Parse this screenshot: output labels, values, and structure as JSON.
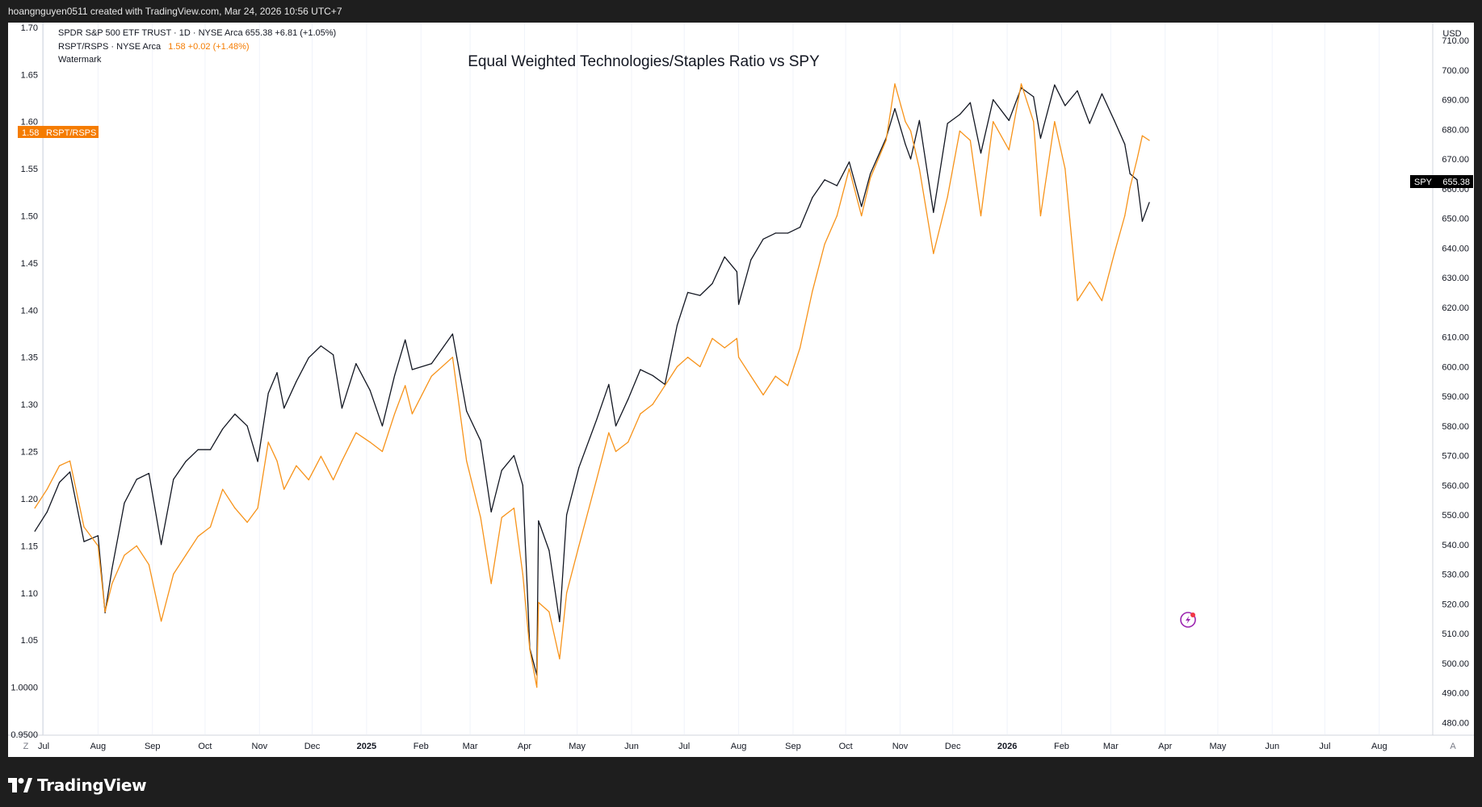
{
  "header": {
    "attribution": "hoangnguyen0511 created with TradingView.com, Mar 24, 2026 10:56 UTC+7"
  },
  "legend": {
    "spy_line": "SPDR S&P 500 ETF TRUST · 1D · NYSE Arca  655.38  +6.81 (+1.05%)",
    "ratio_name": "RSPT/RSPS · NYSE Arca",
    "ratio_values": "1.58  +0.02 (+1.48%)",
    "watermark": "Watermark"
  },
  "badges": {
    "left_value": "1.58",
    "left_name": "RSPT/RSPS",
    "right_name": "SPY",
    "right_value": "655.38"
  },
  "axis": {
    "right_unit": "USD",
    "bottom_left_button": "Z",
    "bottom_right_button": "A"
  },
  "branding": {
    "logo_text": "TradingView"
  },
  "colors": {
    "spy": "#131722",
    "ratio": "#f7931a",
    "badge_orange": "#f57c00",
    "badge_dark": "#000000",
    "grid": "#f0f3fa",
    "axis_text": "#131722",
    "lightning": "#9c27b0",
    "lightning_dot": "#f23645"
  },
  "chart_data": {
    "type": "line",
    "title": "Equal Weighted Technologies/Staples Ratio vs SPY",
    "left_axis": {
      "label": "RSPT/RSPS",
      "range": [
        0.95,
        1.705
      ],
      "ticks": [
        "1.70",
        "1.65",
        "1.60",
        "1.55",
        "1.50",
        "1.45",
        "1.40",
        "1.35",
        "1.30",
        "1.25",
        "1.20",
        "1.15",
        "1.10",
        "1.05",
        "1.0000",
        "0.9500"
      ]
    },
    "right_axis": {
      "label": "USD",
      "range": [
        476,
        716
      ],
      "ticks": [
        "710.00",
        "700.00",
        "690.00",
        "680.00",
        "670.00",
        "660.00",
        "650.00",
        "640.00",
        "630.00",
        "620.00",
        "610.00",
        "600.00",
        "590.00",
        "580.00",
        "570.00",
        "560.00",
        "550.00",
        "540.00",
        "530.00",
        "520.00",
        "510.00",
        "500.00",
        "490.00",
        "480.00"
      ]
    },
    "x_axis": {
      "labels": [
        "Jul",
        "Aug",
        "Sep",
        "Oct",
        "Nov",
        "Dec",
        "2025",
        "Feb",
        "Mar",
        "Apr",
        "May",
        "Jun",
        "Jul",
        "Aug",
        "Sep",
        "Oct",
        "Nov",
        "Dec",
        "2026",
        "Feb",
        "Mar",
        "Apr",
        "May",
        "Jun",
        "Jul",
        "Aug"
      ],
      "bold_labels": [
        "2025",
        "2026"
      ],
      "start": "2024-07-01",
      "end": "2026-08-31"
    },
    "grid": true,
    "series": [
      {
        "name": "SPY",
        "axis": "right",
        "points": [
          [
            "2024-06-26",
            544.5
          ],
          [
            "2024-07-03",
            551
          ],
          [
            "2024-07-10",
            561
          ],
          [
            "2024-07-16",
            564.5
          ],
          [
            "2024-07-24",
            541
          ],
          [
            "2024-08-01",
            543
          ],
          [
            "2024-08-05",
            517
          ],
          [
            "2024-08-09",
            532
          ],
          [
            "2024-08-16",
            554
          ],
          [
            "2024-08-23",
            562
          ],
          [
            "2024-08-30",
            564
          ],
          [
            "2024-09-06",
            540
          ],
          [
            "2024-09-13",
            562
          ],
          [
            "2024-09-20",
            568
          ],
          [
            "2024-09-27",
            572
          ],
          [
            "2024-10-04",
            572
          ],
          [
            "2024-10-11",
            579
          ],
          [
            "2024-10-18",
            584
          ],
          [
            "2024-10-25",
            580
          ],
          [
            "2024-10-31",
            568
          ],
          [
            "2024-11-06",
            591
          ],
          [
            "2024-11-11",
            598
          ],
          [
            "2024-11-15",
            586
          ],
          [
            "2024-11-22",
            595
          ],
          [
            "2024-11-29",
            603
          ],
          [
            "2024-12-06",
            607
          ],
          [
            "2024-12-13",
            604
          ],
          [
            "2024-12-18",
            586
          ],
          [
            "2024-12-26",
            601
          ],
          [
            "2025-01-03",
            592
          ],
          [
            "2025-01-10",
            580
          ],
          [
            "2025-01-17",
            597
          ],
          [
            "2025-01-23",
            609
          ],
          [
            "2025-01-27",
            599
          ],
          [
            "2025-02-07",
            601
          ],
          [
            "2025-02-19",
            611
          ],
          [
            "2025-02-27",
            585
          ],
          [
            "2025-03-07",
            575
          ],
          [
            "2025-03-13",
            551
          ],
          [
            "2025-03-19",
            565
          ],
          [
            "2025-03-26",
            570
          ],
          [
            "2025-03-31",
            560
          ],
          [
            "2025-04-04",
            505
          ],
          [
            "2025-04-08",
            496
          ],
          [
            "2025-04-09",
            548
          ],
          [
            "2025-04-15",
            538
          ],
          [
            "2025-04-21",
            514
          ],
          [
            "2025-04-25",
            550
          ],
          [
            "2025-05-02",
            566
          ],
          [
            "2025-05-12",
            582
          ],
          [
            "2025-05-19",
            594
          ],
          [
            "2025-05-23",
            580
          ],
          [
            "2025-05-30",
            589
          ],
          [
            "2025-06-06",
            599
          ],
          [
            "2025-06-13",
            597
          ],
          [
            "2025-06-20",
            594
          ],
          [
            "2025-06-27",
            614
          ],
          [
            "2025-07-03",
            625
          ],
          [
            "2025-07-10",
            624
          ],
          [
            "2025-07-17",
            628
          ],
          [
            "2025-07-24",
            637
          ],
          [
            "2025-07-31",
            632
          ],
          [
            "2025-08-01",
            621
          ],
          [
            "2025-08-08",
            636
          ],
          [
            "2025-08-15",
            643
          ],
          [
            "2025-08-22",
            645
          ],
          [
            "2025-08-29",
            645
          ],
          [
            "2025-09-05",
            647
          ],
          [
            "2025-09-12",
            657
          ],
          [
            "2025-09-19",
            663
          ],
          [
            "2025-09-26",
            661
          ],
          [
            "2025-10-03",
            669
          ],
          [
            "2025-10-10",
            654
          ],
          [
            "2025-10-15",
            665
          ],
          [
            "2025-10-24",
            677
          ],
          [
            "2025-10-29",
            687
          ],
          [
            "2025-11-04",
            675
          ],
          [
            "2025-11-07",
            670
          ],
          [
            "2025-11-12",
            683
          ],
          [
            "2025-11-20",
            652
          ],
          [
            "2025-11-28",
            682
          ],
          [
            "2025-12-05",
            685
          ],
          [
            "2025-12-11",
            689
          ],
          [
            "2025-12-17",
            672
          ],
          [
            "2025-12-24",
            690
          ],
          [
            "2026-01-02",
            683
          ],
          [
            "2026-01-09",
            694
          ],
          [
            "2026-01-16",
            691
          ],
          [
            "2026-01-20",
            677
          ],
          [
            "2026-01-28",
            695
          ],
          [
            "2026-02-03",
            688
          ],
          [
            "2026-02-10",
            693
          ],
          [
            "2026-02-17",
            682
          ],
          [
            "2026-02-24",
            692
          ],
          [
            "2026-03-03",
            683
          ],
          [
            "2026-03-09",
            675
          ],
          [
            "2026-03-12",
            665
          ],
          [
            "2026-03-16",
            663
          ],
          [
            "2026-03-19",
            649
          ],
          [
            "2026-03-23",
            655.38
          ]
        ]
      },
      {
        "name": "RSPT/RSPS",
        "axis": "left",
        "points": [
          [
            "2024-06-26",
            1.19
          ],
          [
            "2024-07-03",
            1.21
          ],
          [
            "2024-07-10",
            1.235
          ],
          [
            "2024-07-16",
            1.24
          ],
          [
            "2024-07-24",
            1.17
          ],
          [
            "2024-08-01",
            1.15
          ],
          [
            "2024-08-05",
            1.08
          ],
          [
            "2024-08-09",
            1.11
          ],
          [
            "2024-08-16",
            1.14
          ],
          [
            "2024-08-23",
            1.15
          ],
          [
            "2024-08-30",
            1.13
          ],
          [
            "2024-09-06",
            1.07
          ],
          [
            "2024-09-13",
            1.12
          ],
          [
            "2024-09-20",
            1.14
          ],
          [
            "2024-09-27",
            1.16
          ],
          [
            "2024-10-04",
            1.17
          ],
          [
            "2024-10-11",
            1.21
          ],
          [
            "2024-10-18",
            1.19
          ],
          [
            "2024-10-25",
            1.175
          ],
          [
            "2024-10-31",
            1.19
          ],
          [
            "2024-11-06",
            1.26
          ],
          [
            "2024-11-11",
            1.24
          ],
          [
            "2024-11-15",
            1.21
          ],
          [
            "2024-11-22",
            1.235
          ],
          [
            "2024-11-29",
            1.22
          ],
          [
            "2024-12-06",
            1.245
          ],
          [
            "2024-12-13",
            1.22
          ],
          [
            "2024-12-18",
            1.24
          ],
          [
            "2024-12-26",
            1.27
          ],
          [
            "2025-01-03",
            1.26
          ],
          [
            "2025-01-10",
            1.25
          ],
          [
            "2025-01-17",
            1.29
          ],
          [
            "2025-01-23",
            1.32
          ],
          [
            "2025-01-27",
            1.29
          ],
          [
            "2025-02-07",
            1.33
          ],
          [
            "2025-02-19",
            1.35
          ],
          [
            "2025-02-27",
            1.24
          ],
          [
            "2025-03-07",
            1.18
          ],
          [
            "2025-03-13",
            1.11
          ],
          [
            "2025-03-19",
            1.18
          ],
          [
            "2025-03-26",
            1.19
          ],
          [
            "2025-03-31",
            1.12
          ],
          [
            "2025-04-04",
            1.04
          ],
          [
            "2025-04-08",
            1.0
          ],
          [
            "2025-04-09",
            1.09
          ],
          [
            "2025-04-15",
            1.08
          ],
          [
            "2025-04-21",
            1.03
          ],
          [
            "2025-04-25",
            1.1
          ],
          [
            "2025-05-02",
            1.15
          ],
          [
            "2025-05-12",
            1.22
          ],
          [
            "2025-05-19",
            1.27
          ],
          [
            "2025-05-23",
            1.25
          ],
          [
            "2025-05-30",
            1.26
          ],
          [
            "2025-06-06",
            1.29
          ],
          [
            "2025-06-13",
            1.3
          ],
          [
            "2025-06-20",
            1.32
          ],
          [
            "2025-06-27",
            1.34
          ],
          [
            "2025-07-03",
            1.35
          ],
          [
            "2025-07-10",
            1.34
          ],
          [
            "2025-07-17",
            1.37
          ],
          [
            "2025-07-24",
            1.36
          ],
          [
            "2025-07-31",
            1.37
          ],
          [
            "2025-08-01",
            1.35
          ],
          [
            "2025-08-08",
            1.33
          ],
          [
            "2025-08-15",
            1.31
          ],
          [
            "2025-08-22",
            1.33
          ],
          [
            "2025-08-29",
            1.32
          ],
          [
            "2025-09-05",
            1.36
          ],
          [
            "2025-09-12",
            1.42
          ],
          [
            "2025-09-19",
            1.47
          ],
          [
            "2025-09-26",
            1.5
          ],
          [
            "2025-10-03",
            1.55
          ],
          [
            "2025-10-10",
            1.5
          ],
          [
            "2025-10-15",
            1.54
          ],
          [
            "2025-10-24",
            1.58
          ],
          [
            "2025-10-29",
            1.64
          ],
          [
            "2025-11-04",
            1.6
          ],
          [
            "2025-11-07",
            1.59
          ],
          [
            "2025-11-12",
            1.55
          ],
          [
            "2025-11-20",
            1.46
          ],
          [
            "2025-11-28",
            1.52
          ],
          [
            "2025-12-05",
            1.59
          ],
          [
            "2025-12-11",
            1.58
          ],
          [
            "2025-12-17",
            1.5
          ],
          [
            "2025-12-24",
            1.6
          ],
          [
            "2026-01-02",
            1.57
          ],
          [
            "2026-01-09",
            1.64
          ],
          [
            "2026-01-16",
            1.6
          ],
          [
            "2026-01-20",
            1.5
          ],
          [
            "2026-01-28",
            1.6
          ],
          [
            "2026-02-03",
            1.55
          ],
          [
            "2026-02-10",
            1.41
          ],
          [
            "2026-02-17",
            1.43
          ],
          [
            "2026-02-24",
            1.41
          ],
          [
            "2026-03-03",
            1.46
          ],
          [
            "2026-03-09",
            1.5
          ],
          [
            "2026-03-12",
            1.53
          ],
          [
            "2026-03-16",
            1.56
          ],
          [
            "2026-03-19",
            1.585
          ],
          [
            "2026-03-23",
            1.58
          ]
        ]
      }
    ]
  }
}
